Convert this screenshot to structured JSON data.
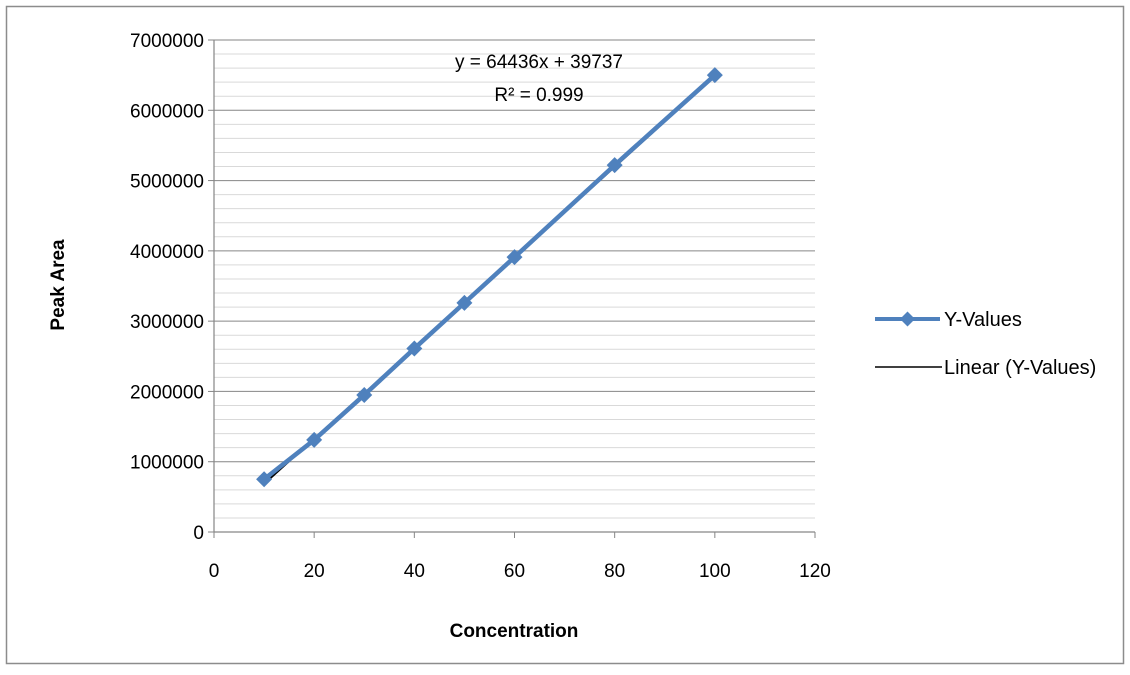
{
  "chart_data": {
    "type": "scatter",
    "xlabel": "Concentration",
    "ylabel": "Peak Area",
    "xlim": [
      0,
      120
    ],
    "ylim": [
      0,
      7000000
    ],
    "x_ticks": [
      "0",
      "20",
      "40",
      "60",
      "80",
      "100",
      "120"
    ],
    "y_ticks": [
      "0",
      "1000000",
      "2000000",
      "3000000",
      "4000000",
      "5000000",
      "6000000",
      "7000000"
    ],
    "y_minor_step": 200000,
    "grid": true,
    "legend_position": "right",
    "series": [
      {
        "name": "Y-Values",
        "marker": "diamond",
        "color": "#4f81bd",
        "x": [
          10,
          20,
          30,
          40,
          50,
          60,
          80,
          100
        ],
        "y": [
          750000,
          1310000,
          1950000,
          2610000,
          3260000,
          3910000,
          5220000,
          6500000
        ]
      }
    ],
    "trendline": {
      "name": "Linear (Y-Values)",
      "type": "linear",
      "slope": 64436,
      "intercept": 39737,
      "color": "#000000",
      "equation": "y = 64436x + 39737",
      "r_squared": "R² = 0.999"
    }
  }
}
